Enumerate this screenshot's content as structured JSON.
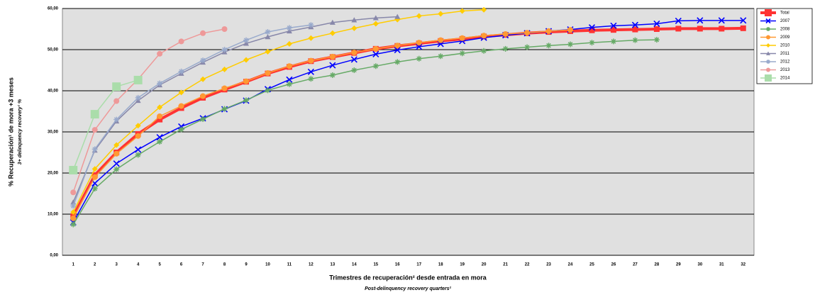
{
  "chart_data": {
    "type": "line",
    "y_title": "% Recuperación¹ de mora +3 meses",
    "y_subtitle": "3+ delinquency recovery¹ %",
    "x_title": "Trimestres de recuperación² desde entrada en mora",
    "x_subtitle": "Post-delinquency recovery quarters²",
    "categories": [
      "1",
      "2",
      "3",
      "4",
      "5",
      "6",
      "7",
      "8",
      "9",
      "10",
      "11",
      "12",
      "13",
      "14",
      "15",
      "16",
      "17",
      "18",
      "19",
      "20",
      "21",
      "22",
      "23",
      "24",
      "25",
      "26",
      "27",
      "28",
      "29",
      "30",
      "31",
      "32"
    ],
    "ylim": [
      0,
      60
    ],
    "yticks": [
      {
        "value": 0,
        "label": "0,00"
      },
      {
        "value": 10,
        "label": "10,00"
      },
      {
        "value": 20,
        "label": "20,00"
      },
      {
        "value": 30,
        "label": "30,00"
      },
      {
        "value": 40,
        "label": "40,00"
      },
      {
        "value": 50,
        "label": "50,00"
      },
      {
        "value": 60,
        "label": "60,00"
      }
    ],
    "grid": true,
    "legend": "right",
    "series": [
      {
        "name": "Total",
        "color": "#ff3333",
        "width": 4,
        "marker": "square",
        "values": [
          9.5,
          19.5,
          25,
          29.5,
          33,
          35.8,
          38.3,
          40.3,
          42.2,
          44.2,
          45.8,
          47.2,
          48.2,
          49.2,
          50.2,
          50.9,
          51.5,
          52.1,
          52.6,
          53.2,
          53.6,
          54.0,
          54.3,
          54.5,
          54.7,
          54.8,
          54.9,
          55.0,
          55.1,
          55.1,
          55.1,
          55.2
        ]
      },
      {
        "name": "2007",
        "color": "#0000ff",
        "width": 1.5,
        "marker": "cross",
        "values": [
          8.0,
          17.5,
          22.3,
          25.7,
          28.7,
          31.3,
          33.3,
          35.5,
          37.6,
          40.4,
          42.7,
          44.6,
          46.2,
          47.6,
          48.9,
          49.9,
          50.7,
          51.4,
          52.1,
          52.9,
          53.5,
          54.0,
          54.5,
          54.9,
          55.4,
          55.8,
          56.0,
          56.3,
          57.0,
          57.1,
          57.1,
          57.1
        ]
      },
      {
        "name": "2008",
        "color": "#66aa66",
        "width": 1.5,
        "marker": "plus",
        "values": [
          7.5,
          16.2,
          20.9,
          24.4,
          27.6,
          30.6,
          33.1,
          35.6,
          37.7,
          40.1,
          41.6,
          42.9,
          43.8,
          45.0,
          46.0,
          47.0,
          47.8,
          48.4,
          49.1,
          49.7,
          50.2,
          50.6,
          51.0,
          51.3,
          51.7,
          52.0,
          52.3,
          52.4,
          null,
          null,
          null,
          null
        ]
      },
      {
        "name": "2009",
        "color": "#ff9933",
        "width": 1.5,
        "marker": "circle",
        "values": [
          9.0,
          19.0,
          24.7,
          29.0,
          33.8,
          36.3,
          38.7,
          40.6,
          42.3,
          44.3,
          46.0,
          47.3,
          48.3,
          49.3,
          50.2,
          51.0,
          51.7,
          52.3,
          52.8,
          53.4,
          53.8,
          54.1,
          54.5,
          54.8,
          null,
          null,
          null,
          null,
          null,
          null,
          null,
          null
        ]
      },
      {
        "name": "2010",
        "color": "#ffcc00",
        "width": 1.5,
        "marker": "diamond",
        "values": [
          10.5,
          21.0,
          26.8,
          31.5,
          36.0,
          39.6,
          42.8,
          45.2,
          47.5,
          49.5,
          51.4,
          52.8,
          54.0,
          55.2,
          56.3,
          57.3,
          58.2,
          58.7,
          59.4,
          59.7,
          null,
          null,
          null,
          null,
          null,
          null,
          null,
          null,
          null,
          null,
          null,
          null
        ]
      },
      {
        "name": "2011",
        "color": "#8888aa",
        "width": 1.5,
        "marker": "triangle",
        "values": [
          12.9,
          25.5,
          32.6,
          37.6,
          41.4,
          44.2,
          46.9,
          49.4,
          51.5,
          53.1,
          54.5,
          55.5,
          56.6,
          57.2,
          57.7,
          58.0,
          null,
          null,
          null,
          null,
          null,
          null,
          null,
          null,
          null,
          null,
          null,
          null,
          null,
          null,
          null,
          null
        ]
      },
      {
        "name": "2012",
        "color": "#99aacc",
        "width": 1.5,
        "marker": "plus",
        "values": [
          12.0,
          25.8,
          33.0,
          38.3,
          41.8,
          44.7,
          47.4,
          50.0,
          52.3,
          54.3,
          55.3,
          56.0,
          null,
          null,
          null,
          null,
          null,
          null,
          null,
          null,
          null,
          null,
          null,
          null,
          null,
          null,
          null,
          null,
          null,
          null,
          null,
          null
        ]
      },
      {
        "name": "2013",
        "color": "#ee9999",
        "width": 1.5,
        "marker": "circle",
        "values": [
          15.3,
          30.5,
          37.5,
          42.8,
          49.0,
          52.0,
          54.0,
          55.0,
          null,
          null,
          null,
          null,
          null,
          null,
          null,
          null,
          null,
          null,
          null,
          null,
          null,
          null,
          null,
          null,
          null,
          null,
          null,
          null,
          null,
          null,
          null,
          null
        ]
      },
      {
        "name": "2014",
        "color": "#aaddaa",
        "width": 1.5,
        "marker": "square",
        "values": [
          20.7,
          34.3,
          41.0,
          42.6,
          null,
          null,
          null,
          null,
          null,
          null,
          null,
          null,
          null,
          null,
          null,
          null,
          null,
          null,
          null,
          null,
          null,
          null,
          null,
          null,
          null,
          null,
          null,
          null,
          null,
          null,
          null,
          null
        ]
      }
    ]
  }
}
